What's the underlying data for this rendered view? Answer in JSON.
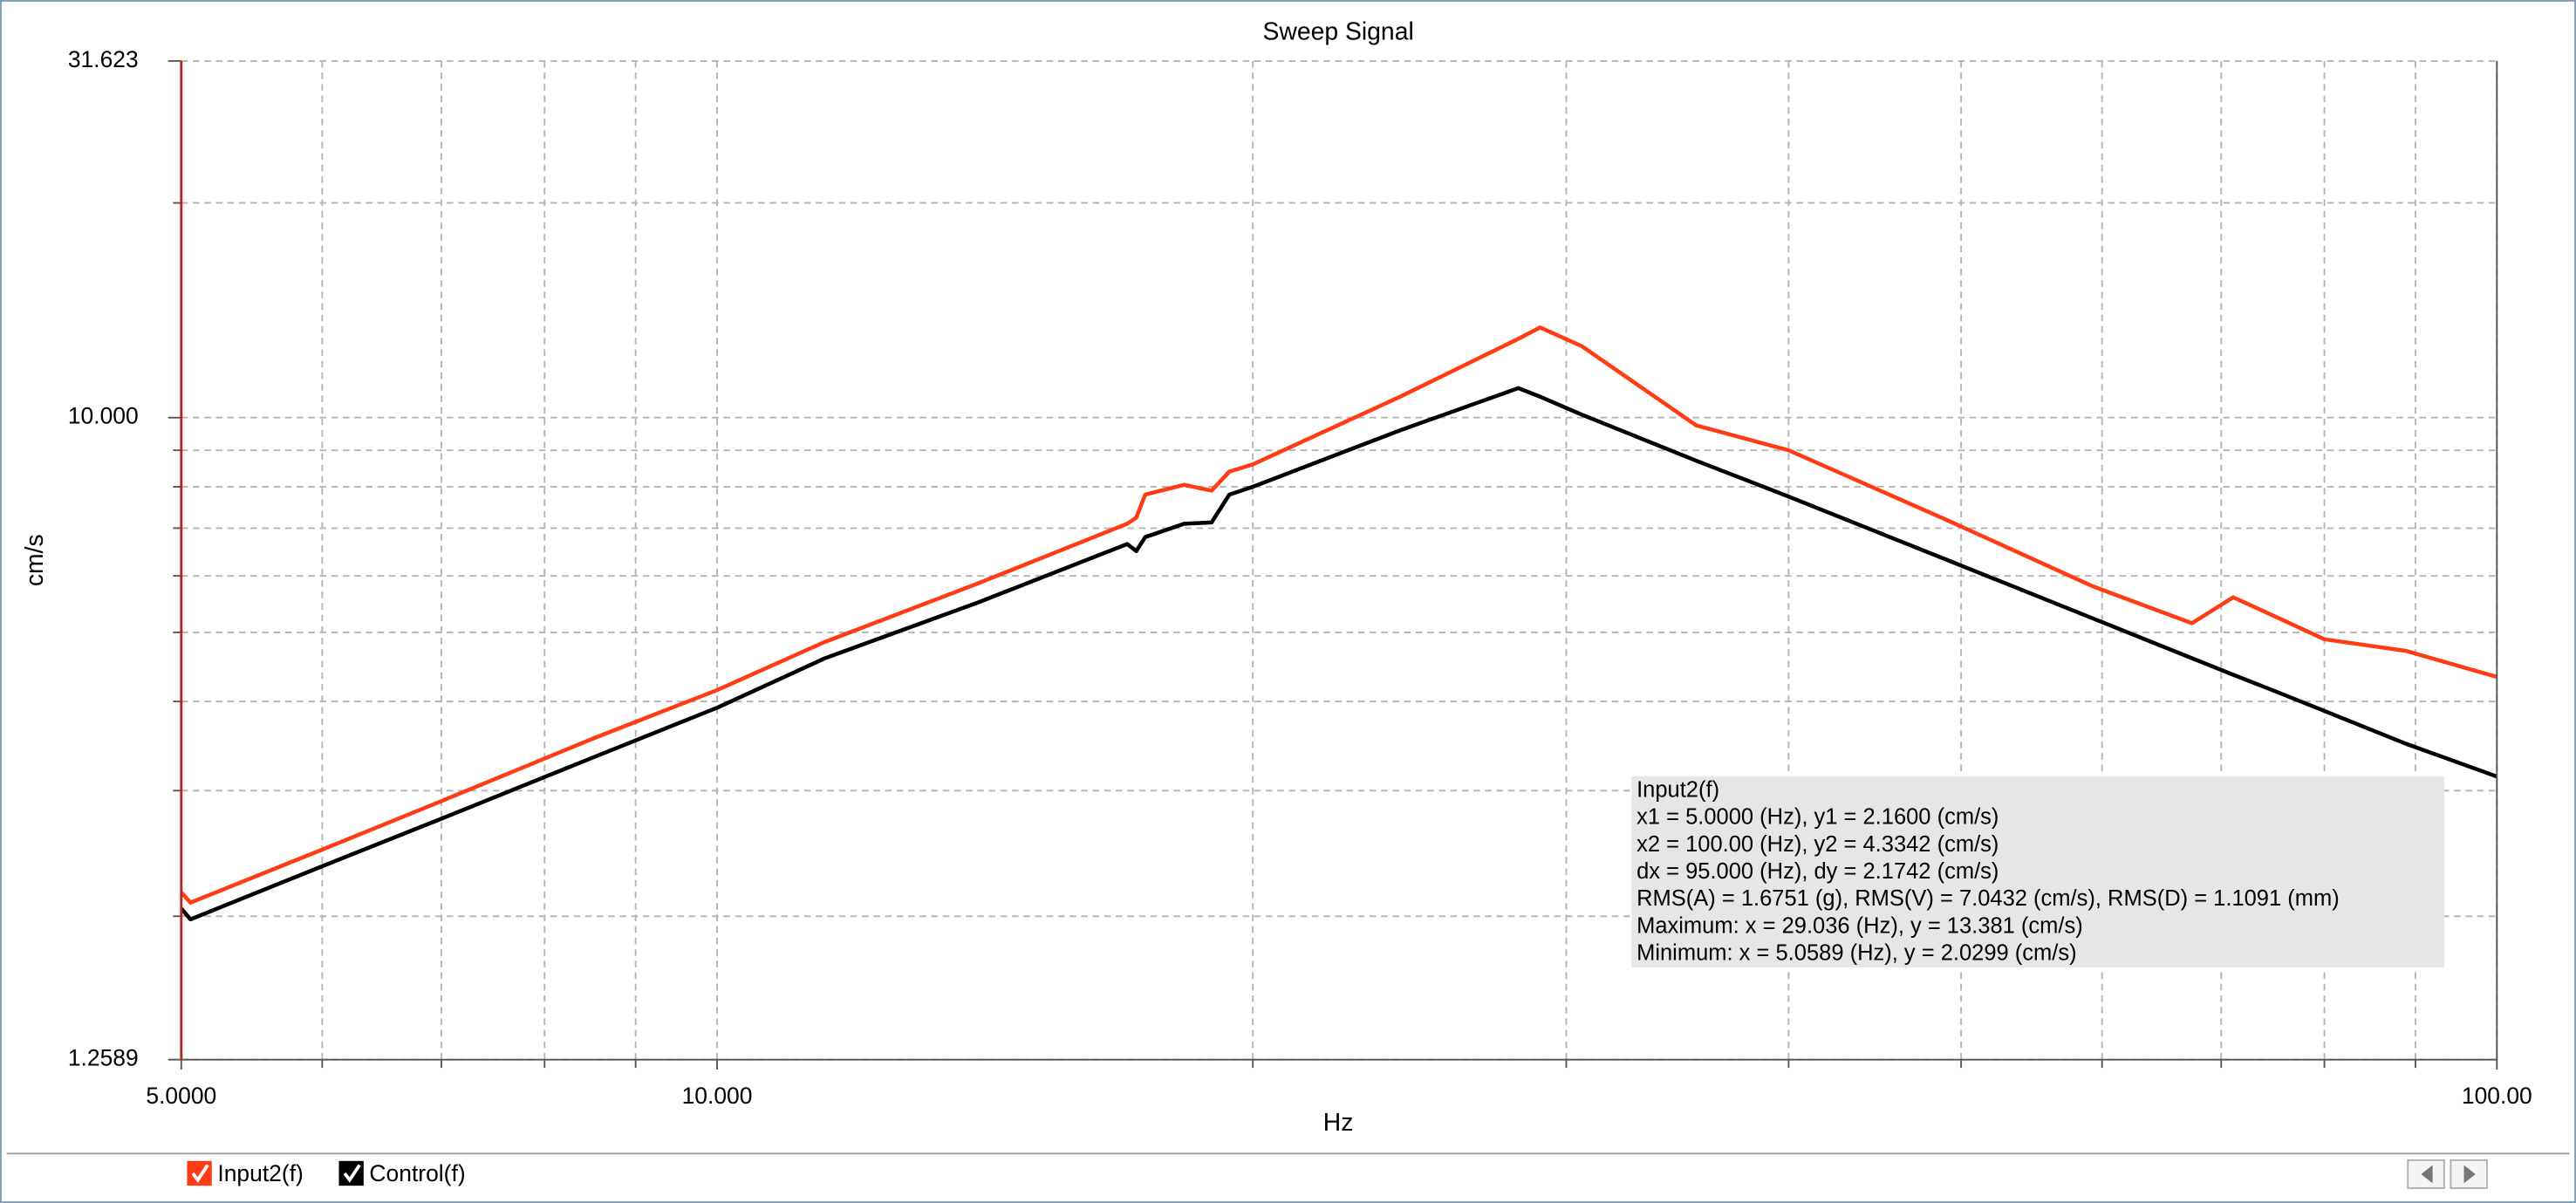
{
  "chart_data": {
    "type": "line",
    "title": "Sweep Signal",
    "x_label": "Hz",
    "y_label": "cm/s",
    "log_x": true,
    "log_y": true,
    "grid": true,
    "xlim": [
      5,
      100
    ],
    "ylim": [
      1.2589,
      31.623
    ],
    "xticks": [
      {
        "value": 5,
        "label": "5.0000"
      },
      {
        "value": 10,
        "label": "10.000"
      },
      {
        "value": 100,
        "label": "100.00"
      }
    ],
    "xminor_ticks": [
      6,
      7,
      8,
      9,
      20,
      30,
      40,
      50,
      60,
      70,
      80,
      90
    ],
    "yticks": [
      {
        "value": 1.2589,
        "label": "1.2589"
      },
      {
        "value": 10,
        "label": "10.000"
      },
      {
        "value": 31.623,
        "label": "31.623"
      }
    ],
    "yminor_ticks": [
      2,
      3,
      4,
      5,
      6,
      7,
      8,
      9,
      20
    ],
    "x": [
      5.0,
      5.06,
      6,
      7,
      8.52,
      10,
      11.5,
      14,
      17.0,
      17.2,
      17.4,
      18.3,
      18.96,
      19.4,
      20,
      24.2,
      28.2,
      29.0,
      30.6,
      35.5,
      40,
      49,
      59.3,
      67.4,
      71.1,
      74.6,
      80,
      88.9,
      100
    ],
    "series": [
      {
        "name": "Input2(f)",
        "color": "#ff3c14",
        "values": [
          2.16,
          2.09,
          2.48,
          2.9,
          3.55,
          4.15,
          4.85,
          5.85,
          7.1,
          7.24,
          7.8,
          8.05,
          7.9,
          8.4,
          8.6,
          10.7,
          12.9,
          13.38,
          12.6,
          9.75,
          9.0,
          7.2,
          5.8,
          5.15,
          5.6,
          5.3,
          4.89,
          4.71,
          4.33
        ]
      },
      {
        "name": "Control(f)",
        "color": "#000000",
        "values": [
          2.05,
          1.98,
          2.35,
          2.74,
          3.34,
          3.92,
          4.6,
          5.5,
          6.65,
          6.5,
          6.8,
          7.1,
          7.13,
          7.8,
          8.0,
          9.6,
          11.0,
          10.7,
          10.1,
          8.7,
          7.75,
          6.33,
          5.23,
          4.6,
          4.36,
          4.16,
          3.88,
          3.49,
          3.14
        ]
      }
    ],
    "cursor_info": {
      "title": "Input2(f)",
      "lines": [
        "x1 = 5.0000 (Hz), y1 = 2.1600 (cm/s)",
        "x2 = 100.00 (Hz), y2 = 4.3342 (cm/s)",
        "dx = 95.000 (Hz), dy = 2.1742 (cm/s)",
        "RMS(A) = 1.6751 (g), RMS(V) = 7.0432 (cm/s), RMS(D) = 1.1091 (mm)",
        "Maximum: x = 29.036 (Hz), y = 13.381 (cm/s)",
        "Minimum: x = 5.0589 (Hz), y = 2.0299 (cm/s)"
      ]
    }
  }
}
